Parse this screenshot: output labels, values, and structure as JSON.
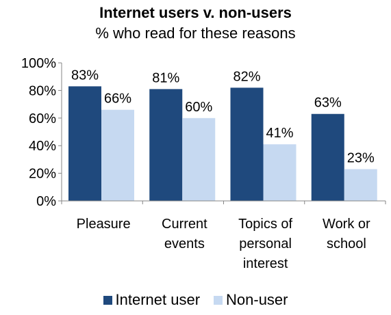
{
  "chart_data": {
    "type": "bar",
    "title": "Internet users v. non-users",
    "subtitle": "% who read for these reasons",
    "categories": [
      [
        "Pleasure"
      ],
      [
        "Current",
        "events"
      ],
      [
        "Topics of",
        "personal",
        "interest"
      ],
      [
        "Work or",
        "school"
      ]
    ],
    "series": [
      {
        "name": "Internet user",
        "color": "#1f497d",
        "values": [
          83,
          81,
          82,
          63
        ],
        "labels": [
          "83%",
          "81%",
          "82%",
          "63%"
        ]
      },
      {
        "name": "Non-user",
        "color": "#c6d9f1",
        "values": [
          66,
          60,
          41,
          23
        ],
        "labels": [
          "66%",
          "60%",
          "41%",
          "23%"
        ]
      }
    ],
    "ylim": [
      0,
      100
    ],
    "yticks": [
      0,
      20,
      40,
      60,
      80,
      100
    ],
    "ytick_labels": [
      "0%",
      "20%",
      "40%",
      "60%",
      "80%",
      "100%"
    ],
    "grid": false,
    "legend": "bottom"
  }
}
